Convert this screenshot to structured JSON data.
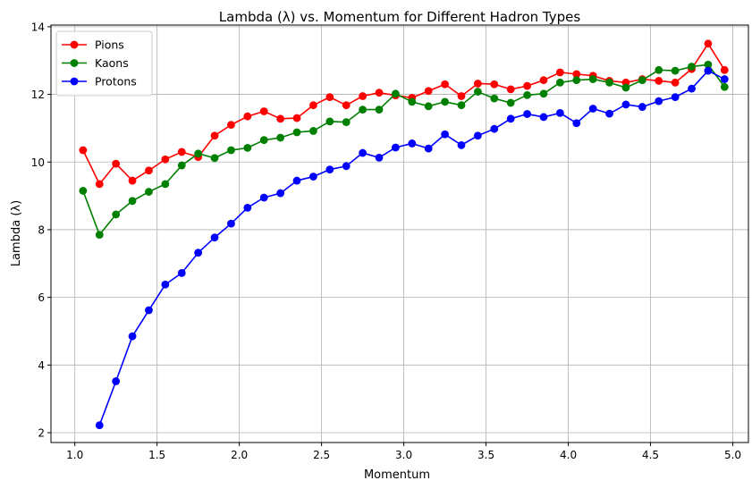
{
  "chart_data": {
    "type": "line",
    "title": "Lambda (λ) vs. Momentum for Different Hadron Types",
    "xlabel": "Momentum",
    "ylabel": "Lambda (λ)",
    "xlim": [
      0.855,
      5.095
    ],
    "ylim": [
      1.71,
      14.05
    ],
    "xticks": [
      "1.0",
      "1.5",
      "2.0",
      "2.5",
      "3.0",
      "3.5",
      "4.0",
      "4.5",
      "5.0"
    ],
    "yticks": [
      "2",
      "4",
      "6",
      "8",
      "10",
      "12",
      "14"
    ],
    "grid": true,
    "legend_position": "top-left",
    "x": [
      1.05,
      1.15,
      1.25,
      1.35,
      1.45,
      1.55,
      1.65,
      1.75,
      1.85,
      1.95,
      2.05,
      2.15,
      2.25,
      2.35,
      2.45,
      2.55,
      2.65,
      2.75,
      2.85,
      2.95,
      3.05,
      3.15,
      3.25,
      3.35,
      3.45,
      3.55,
      3.65,
      3.75,
      3.85,
      3.95,
      4.05,
      4.15,
      4.25,
      4.35,
      4.45,
      4.55,
      4.65,
      4.75,
      4.85,
      4.95
    ],
    "series": [
      {
        "name": "Pions",
        "color": "#ff0000",
        "values": [
          10.35,
          9.35,
          9.95,
          9.45,
          9.75,
          10.08,
          10.3,
          10.15,
          10.78,
          11.1,
          11.35,
          11.5,
          11.28,
          11.3,
          11.68,
          11.92,
          11.68,
          11.95,
          12.05,
          11.97,
          11.9,
          12.1,
          12.3,
          11.95,
          12.32,
          12.3,
          12.15,
          12.25,
          12.42,
          12.65,
          12.6,
          12.55,
          12.4,
          12.35,
          12.45,
          12.4,
          12.35,
          12.75,
          13.5,
          12.72
        ]
      },
      {
        "name": "Kaons",
        "color": "#008000",
        "values": [
          9.15,
          7.85,
          8.45,
          8.85,
          9.12,
          9.35,
          9.9,
          10.25,
          10.12,
          10.35,
          10.42,
          10.65,
          10.72,
          10.88,
          10.92,
          11.2,
          11.18,
          11.55,
          11.55,
          12.02,
          11.78,
          11.65,
          11.78,
          11.68,
          12.08,
          11.88,
          11.75,
          11.98,
          12.02,
          12.35,
          12.42,
          12.45,
          12.35,
          12.2,
          12.42,
          12.72,
          12.7,
          12.82,
          12.88,
          12.22
        ]
      },
      {
        "name": "Protons",
        "color": "#0000ff",
        "values": [
          null,
          2.22,
          3.52,
          4.85,
          5.62,
          6.38,
          6.72,
          7.32,
          7.77,
          8.18,
          8.65,
          8.95,
          9.08,
          9.45,
          9.57,
          9.78,
          9.88,
          10.27,
          10.13,
          10.43,
          10.55,
          10.4,
          10.82,
          10.5,
          10.78,
          10.98,
          11.28,
          11.42,
          11.33,
          11.45,
          11.15,
          11.58,
          11.43,
          11.7,
          11.63,
          11.8,
          11.92,
          12.17,
          12.7,
          12.45
        ]
      }
    ]
  }
}
